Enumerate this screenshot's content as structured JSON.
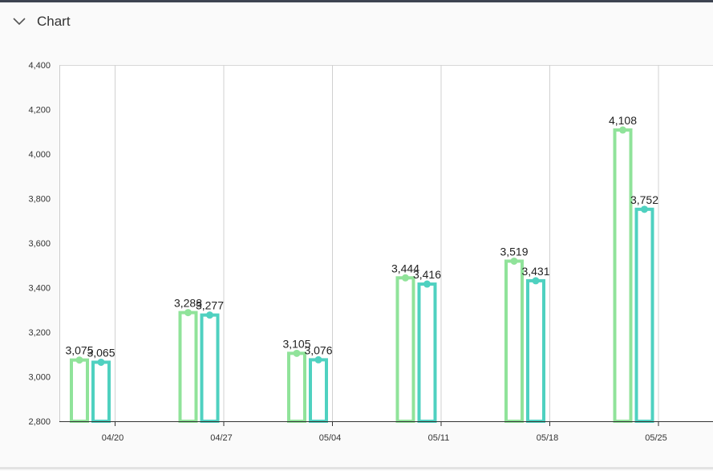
{
  "panel": {
    "title": "Chart",
    "toggle_icon": "chevron-down-icon"
  },
  "chart_data": {
    "type": "bar",
    "categories": [
      "04/20",
      "04/27",
      "05/04",
      "05/11",
      "05/18",
      "05/25"
    ],
    "series": [
      {
        "values": [
          3075,
          3288,
          3105,
          3444,
          3519,
          4108
        ],
        "color": "#90e39a"
      },
      {
        "values": [
          3065,
          3277,
          3076,
          3416,
          3431,
          3752
        ],
        "color": "#4fd1c0"
      }
    ],
    "ylim": [
      2800,
      4400
    ],
    "yticks": [
      "2,800",
      "3,000",
      "3,200",
      "3,400",
      "3,600",
      "3,800",
      "4,000",
      "4,200",
      "4,400"
    ],
    "data_labels": [
      [
        "3,075",
        "3,288",
        "3,105",
        "3,444",
        "3,519",
        "4,108"
      ],
      [
        "3,065",
        "3,277",
        "3,076",
        "3,416",
        "3,431",
        "3,752"
      ]
    ],
    "grid": "vertical",
    "legend": "none"
  }
}
